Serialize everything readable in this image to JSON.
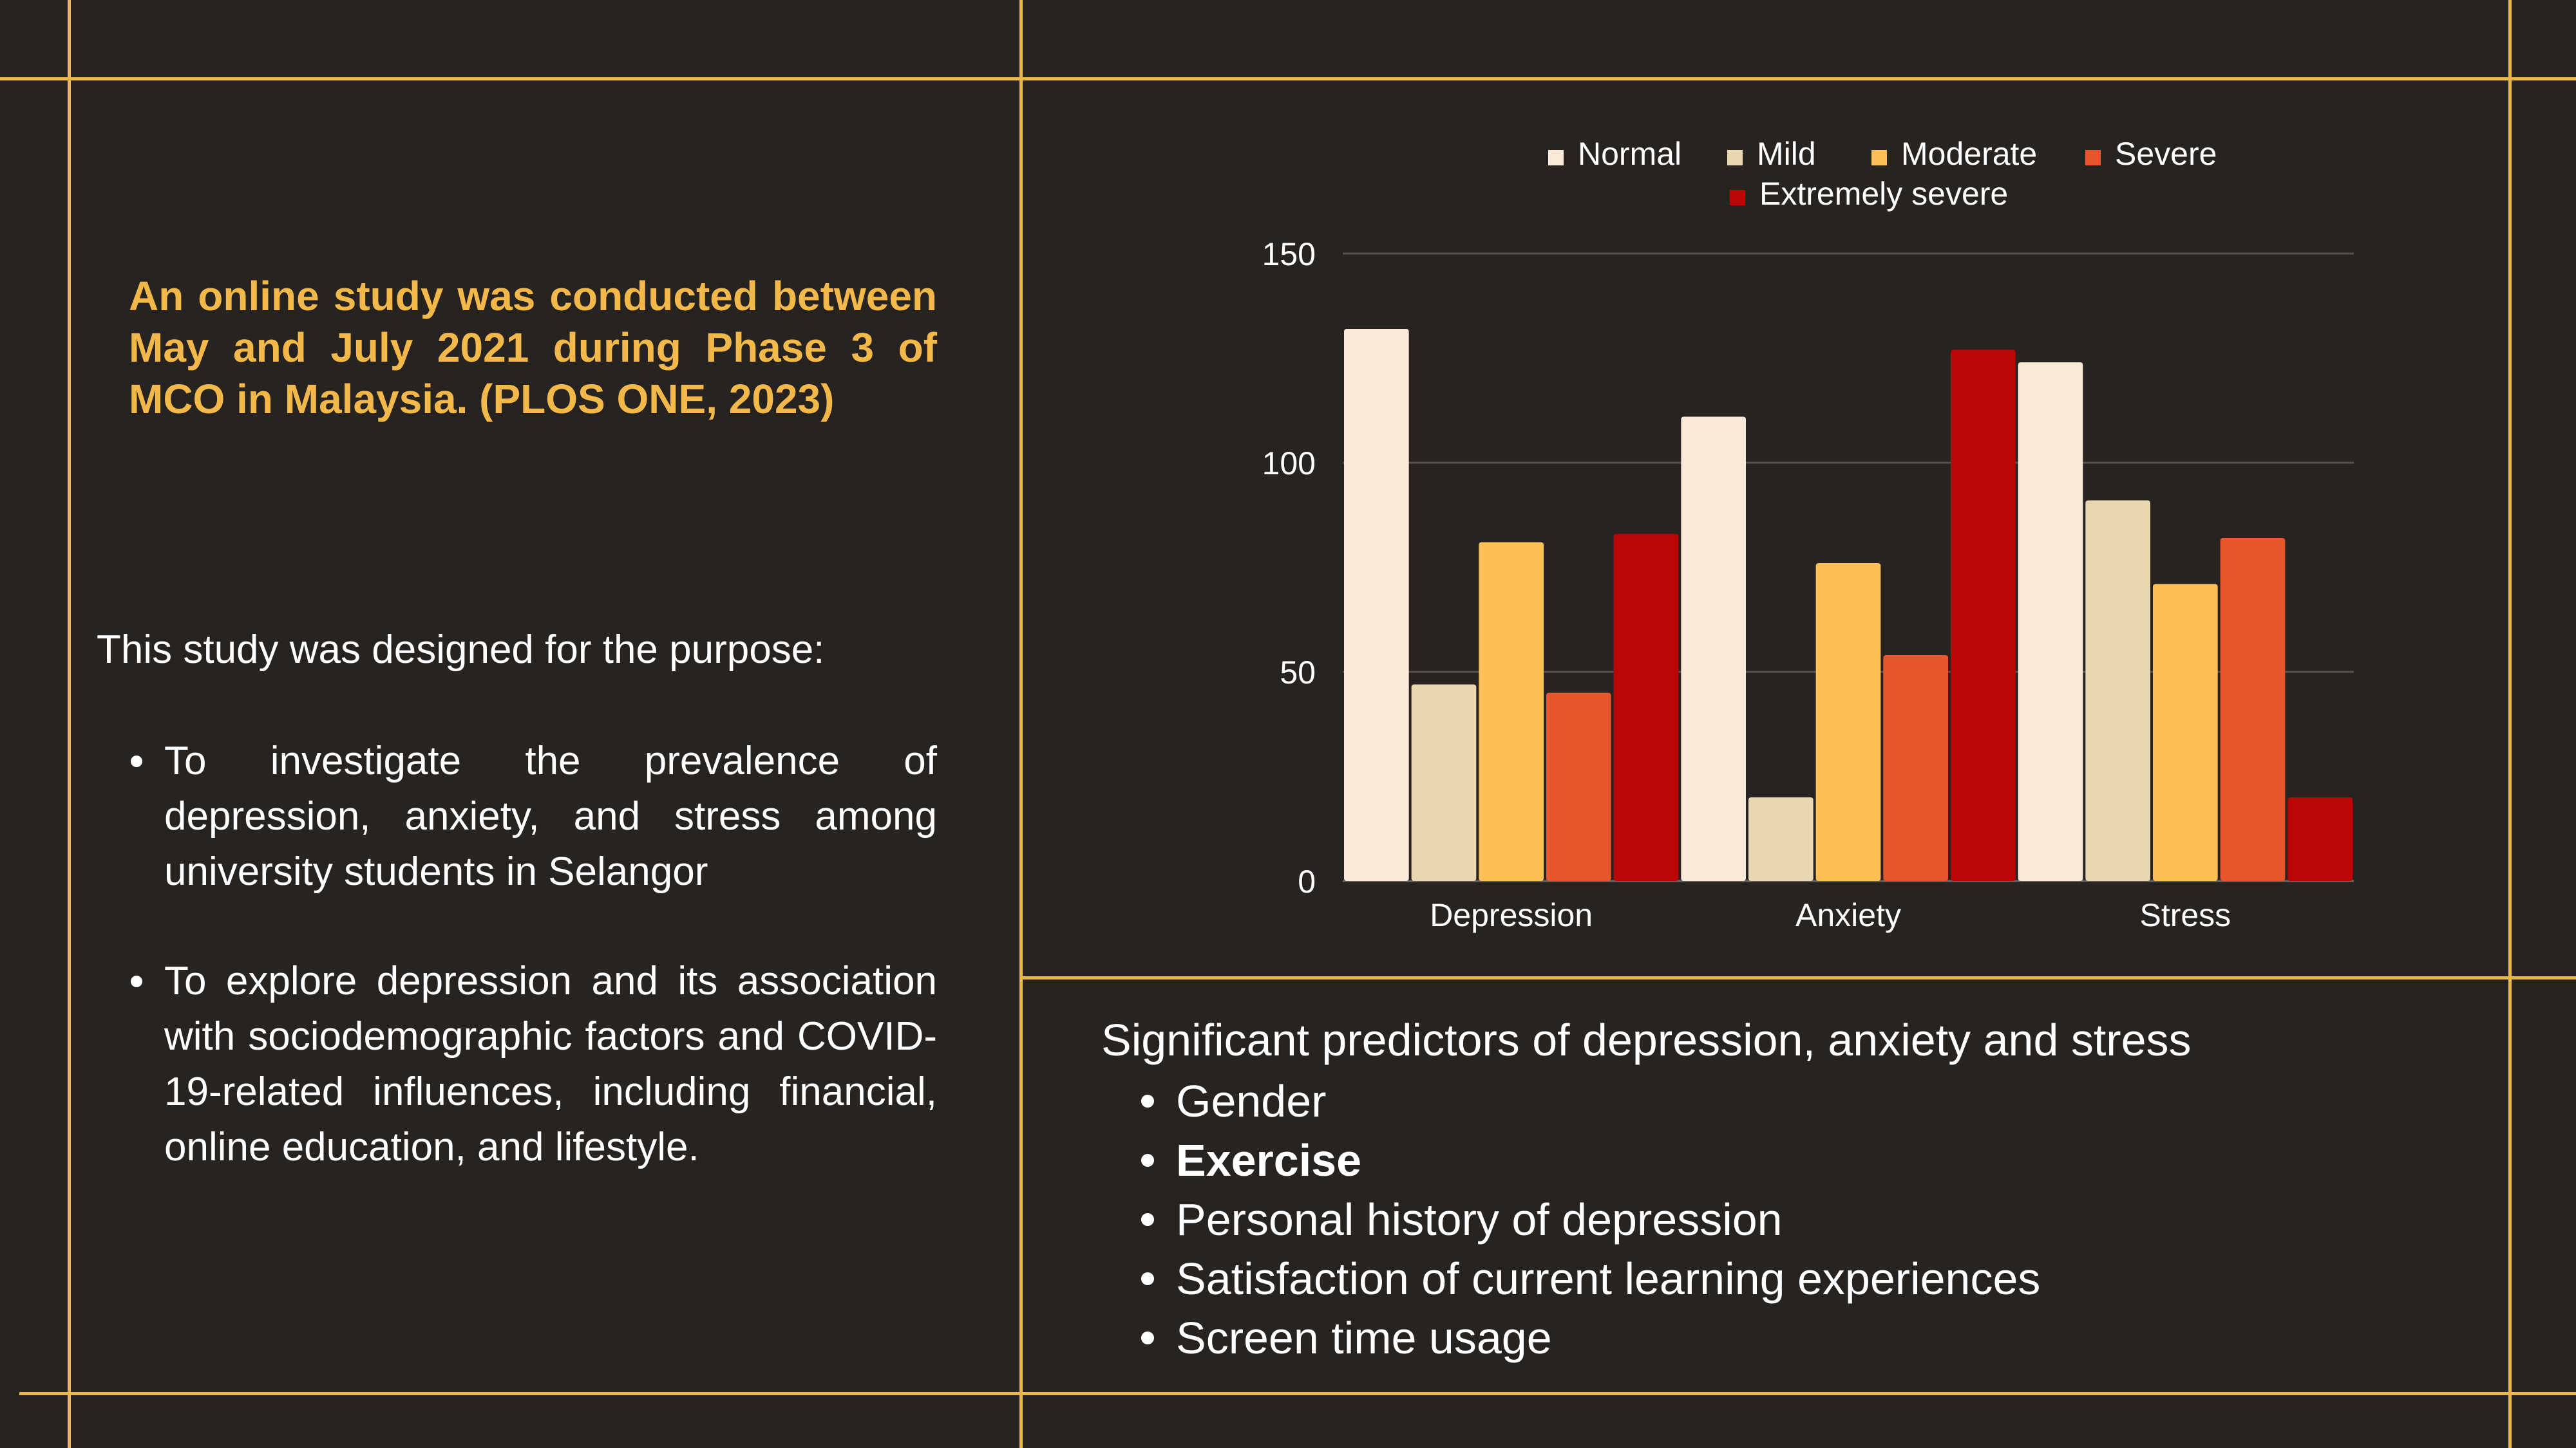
{
  "intro_text": "An online study was conducted between May and July 2021 during Phase 3 of MCO in Malaysia. (PLOS ONE, 2023)",
  "purpose": {
    "intro": "This study was designed for the purpose:",
    "items": [
      "To investigate the prevalence of depression, anxiety, and stress among university students in Selangor",
      "To explore depression and its association with sociodemographic factors and COVID-19-related influences, including financial, online education, and lifestyle."
    ]
  },
  "predictors": {
    "title": "Significant predictors of depression, anxiety and stress",
    "items": [
      {
        "label": "Gender",
        "bold": false
      },
      {
        "label": "Exercise",
        "bold": true
      },
      {
        "label": "Personal history of depression",
        "bold": false
      },
      {
        "label": "Satisfaction of current learning experiences",
        "bold": false
      },
      {
        "label": "Screen time usage",
        "bold": false
      }
    ]
  },
  "colors": {
    "background": "#272320",
    "grid_lines": "#e8b84a",
    "accent_text": "#f2b94a"
  },
  "chart_data": {
    "type": "bar",
    "categories": [
      "Depression",
      "Anxiety",
      "Stress"
    ],
    "series": [
      {
        "name": "Normal",
        "color": "#f9e9d8",
        "values": [
          132,
          111,
          124
        ]
      },
      {
        "name": "Mild",
        "color": "#e8d7b0",
        "values": [
          47,
          20,
          91
        ]
      },
      {
        "name": "Moderate",
        "color": "#fcc057",
        "values": [
          81,
          76,
          71
        ]
      },
      {
        "name": "Severe",
        "color": "#e8562e",
        "values": [
          45,
          54,
          82
        ]
      },
      {
        "name": "Extremely severe",
        "color": "#bb0608",
        "values": [
          83,
          127,
          20
        ]
      }
    ],
    "ylim": [
      0,
      150
    ],
    "yticks": [
      0,
      50,
      100,
      150
    ],
    "grid": true,
    "legend": "top-center",
    "title": "",
    "xlabel": "",
    "ylabel": ""
  }
}
